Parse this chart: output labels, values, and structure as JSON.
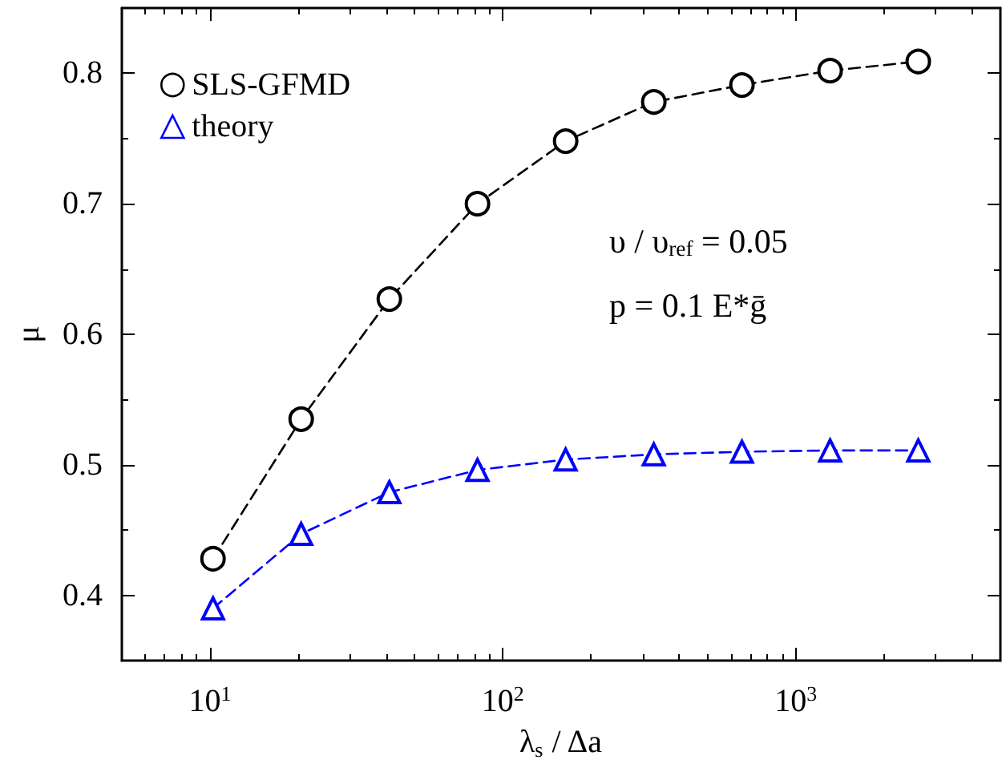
{
  "chart_data": {
    "type": "line",
    "xlabel": "λ$_{s}$ / Δa",
    "ylabel": "μ",
    "log": "x",
    "xlim": [
      5,
      5000
    ],
    "xticks": [
      {
        "value": 10,
        "label": "10$^{1}$"
      },
      {
        "value": 100,
        "label": "10$^{2}$"
      },
      {
        "value": 1000,
        "label": "10$^{3}$"
      }
    ],
    "ylim": [
      0.35,
      0.85
    ],
    "yticks": [
      0.4,
      0.5,
      0.6,
      0.7,
      0.8
    ],
    "x": [
      10.24,
      20.48,
      40.96,
      81.92,
      163.84,
      327.68,
      655.36,
      1310.72,
      2621.44
    ],
    "series": [
      {
        "name": "SLS-GFMD",
        "color": "#000000",
        "marker": "circle",
        "line_style": "dashed",
        "values": [
          0.428,
          0.535,
          0.627,
          0.7,
          0.748,
          0.778,
          0.791,
          0.802,
          0.809
        ]
      },
      {
        "name": "theory",
        "color": "#0000ff",
        "marker": "triangle",
        "line_style": "dashed",
        "values": [
          0.39,
          0.447,
          0.479,
          0.496,
          0.504,
          0.508,
          0.51,
          0.511,
          0.511
        ]
      }
    ],
    "legend": "top left",
    "grid": false,
    "annotations": [
      "υ / υ$_{ref}$ = 0.05",
      "p = 0.1 E*ḡ"
    ]
  }
}
